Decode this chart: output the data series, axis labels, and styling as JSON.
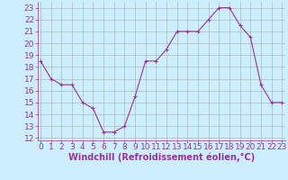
{
  "x": [
    0,
    1,
    2,
    3,
    4,
    5,
    6,
    7,
    8,
    9,
    10,
    11,
    12,
    13,
    14,
    15,
    16,
    17,
    18,
    19,
    20,
    21,
    22,
    23
  ],
  "y": [
    18.5,
    17.0,
    16.5,
    16.5,
    15.0,
    14.5,
    12.5,
    12.5,
    13.0,
    15.5,
    18.5,
    18.5,
    19.5,
    21.0,
    21.0,
    21.0,
    22.0,
    23.0,
    23.0,
    21.5,
    20.5,
    16.5,
    15.0,
    15.0
  ],
  "line_color": "#993399",
  "marker": "+",
  "marker_size": 3,
  "bg_color": "#cceeff",
  "grid_color": "#aabbbb",
  "xlabel": "Windchill (Refroidissement éolien,°C)",
  "xlabel_color": "#993399",
  "xlabel_fontsize": 7,
  "tick_color": "#993399",
  "tick_fontsize": 6.5,
  "ylim": [
    11.8,
    23.5
  ],
  "yticks": [
    12,
    13,
    14,
    15,
    16,
    17,
    18,
    19,
    20,
    21,
    22,
    23
  ],
  "xticks": [
    0,
    1,
    2,
    3,
    4,
    5,
    6,
    7,
    8,
    9,
    10,
    11,
    12,
    13,
    14,
    15,
    16,
    17,
    18,
    19,
    20,
    21,
    22,
    23
  ],
  "xlim": [
    -0.3,
    23.3
  ]
}
